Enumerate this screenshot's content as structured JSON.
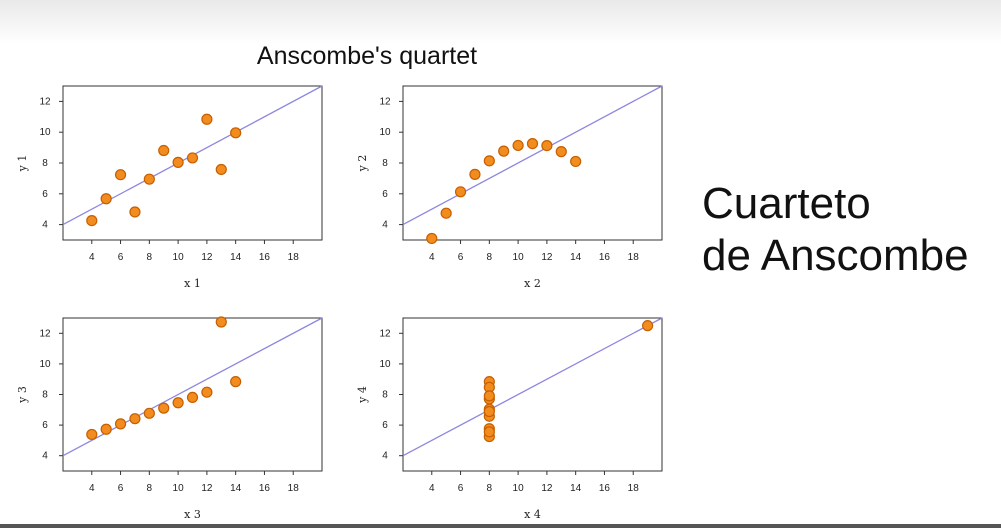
{
  "page": {
    "title": "Anscombe's quartet",
    "side_title_line1": "Cuarteto",
    "side_title_line2": "de Anscombe"
  },
  "colors": {
    "marker_fill": "#f28c1e",
    "marker_edge": "#c65f00",
    "fit_line": "#8d87e0",
    "axes": "#333333"
  },
  "chart_data": [
    {
      "type": "scatter",
      "title": "",
      "xlabel": "x 1",
      "ylabel": "y 1",
      "xlim": [
        2,
        20
      ],
      "ylim": [
        3,
        13
      ],
      "xticks": [
        4,
        6,
        8,
        10,
        12,
        14,
        16,
        18
      ],
      "yticks": [
        4,
        6,
        8,
        10,
        12
      ],
      "grid": false,
      "fit_line": {
        "intercept": 3,
        "slope": 0.5
      },
      "x": [
        10,
        8,
        13,
        9,
        11,
        14,
        6,
        4,
        12,
        7,
        5
      ],
      "y": [
        8.04,
        6.95,
        7.58,
        8.81,
        8.33,
        9.96,
        7.24,
        4.26,
        10.84,
        4.82,
        5.68
      ]
    },
    {
      "type": "scatter",
      "title": "",
      "xlabel": "x 2",
      "ylabel": "y 2",
      "xlim": [
        2,
        20
      ],
      "ylim": [
        3,
        13
      ],
      "xticks": [
        4,
        6,
        8,
        10,
        12,
        14,
        16,
        18
      ],
      "yticks": [
        4,
        6,
        8,
        10,
        12
      ],
      "grid": false,
      "fit_line": {
        "intercept": 3,
        "slope": 0.5
      },
      "x": [
        10,
        8,
        13,
        9,
        11,
        14,
        6,
        4,
        12,
        7,
        5
      ],
      "y": [
        9.14,
        8.14,
        8.74,
        8.77,
        9.26,
        8.1,
        6.13,
        3.1,
        9.13,
        7.26,
        4.74
      ]
    },
    {
      "type": "scatter",
      "title": "",
      "xlabel": "x 3",
      "ylabel": "y 3",
      "xlim": [
        2,
        20
      ],
      "ylim": [
        3,
        13
      ],
      "xticks": [
        4,
        6,
        8,
        10,
        12,
        14,
        16,
        18
      ],
      "yticks": [
        4,
        6,
        8,
        10,
        12
      ],
      "grid": false,
      "fit_line": {
        "intercept": 3,
        "slope": 0.5
      },
      "x": [
        10,
        8,
        13,
        9,
        11,
        14,
        6,
        4,
        12,
        7,
        5
      ],
      "y": [
        7.46,
        6.77,
        12.74,
        7.11,
        7.81,
        8.84,
        6.08,
        5.39,
        8.15,
        6.42,
        5.73
      ]
    },
    {
      "type": "scatter",
      "title": "",
      "xlabel": "x 4",
      "ylabel": "y 4",
      "xlim": [
        2,
        20
      ],
      "ylim": [
        3,
        13
      ],
      "xticks": [
        4,
        6,
        8,
        10,
        12,
        14,
        16,
        18
      ],
      "yticks": [
        4,
        6,
        8,
        10,
        12
      ],
      "grid": false,
      "fit_line": {
        "intercept": 3,
        "slope": 0.5
      },
      "x": [
        8,
        8,
        8,
        8,
        8,
        8,
        8,
        19,
        8,
        8,
        8
      ],
      "y": [
        6.58,
        5.76,
        7.71,
        8.84,
        8.47,
        7.04,
        5.25,
        12.5,
        5.56,
        7.91,
        6.89
      ]
    }
  ]
}
